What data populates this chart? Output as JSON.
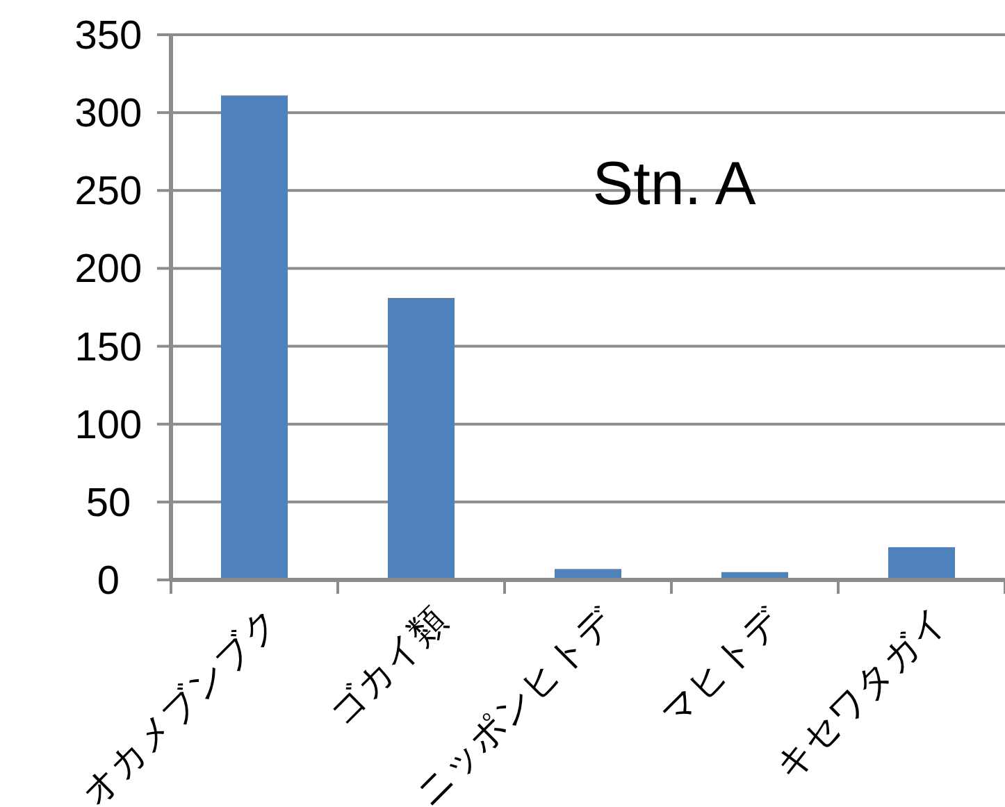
{
  "chart_data": {
    "type": "bar",
    "categories": [
      "オカメブンブク",
      "ゴカイ類",
      "ニッポンヒトデ",
      "マヒトデ",
      "キセワタガイ"
    ],
    "values": [
      311,
      181,
      7,
      5,
      21
    ],
    "color": "#4f81bd",
    "ylim": [
      0,
      350
    ],
    "yticks": [
      0,
      50,
      100,
      150,
      200,
      250,
      300,
      350
    ],
    "grid": "y",
    "annotations": [
      "Stn. A"
    ]
  }
}
